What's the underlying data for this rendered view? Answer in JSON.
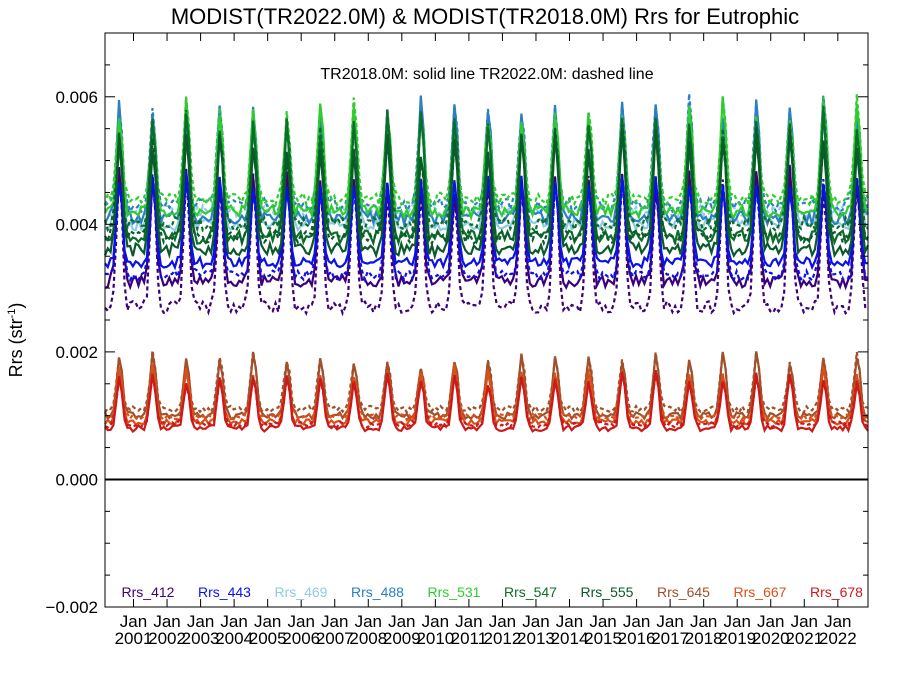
{
  "chart_data": {
    "type": "line",
    "title": "MODIST(TR2022.0M) & MODIST(TR2018.0M)  Rrs for Eutrophic",
    "annotation": "TR2018.0M: solid line   TR2022.0M: dashed line",
    "ylabel_base": "Rrs (str",
    "ylabel_sup": "-1",
    "ylabel_close": ")",
    "xlabel": "",
    "ylim": [
      -0.002,
      0.007
    ],
    "yticks": [
      {
        "value": -0.002,
        "label": "−0.002"
      },
      {
        "value": 0.0,
        "label": "0.000"
      },
      {
        "value": 0.002,
        "label": "0.002"
      },
      {
        "value": 0.004,
        "label": "0.004"
      },
      {
        "value": 0.006,
        "label": "0.006"
      }
    ],
    "xlim": [
      2000.15,
      2022.9
    ],
    "x_ticks": [
      {
        "value": 2001.0,
        "label": "Jan 2001"
      },
      {
        "value": 2002.0,
        "label": "Jan 2002"
      },
      {
        "value": 2003.0,
        "label": "Jan 2003"
      },
      {
        "value": 2004.0,
        "label": "Jan 2004"
      },
      {
        "value": 2005.0,
        "label": "Jan 2005"
      },
      {
        "value": 2006.0,
        "label": "Jan 2006"
      },
      {
        "value": 2007.0,
        "label": "Jan 2007"
      },
      {
        "value": 2008.0,
        "label": "Jan 2008"
      },
      {
        "value": 2009.0,
        "label": "Jan 2009"
      },
      {
        "value": 2010.0,
        "label": "Jan 2010"
      },
      {
        "value": 2011.0,
        "label": "Jan 2011"
      },
      {
        "value": 2012.0,
        "label": "Jan 2012"
      },
      {
        "value": 2013.0,
        "label": "Jan 2013"
      },
      {
        "value": 2014.0,
        "label": "Jan 2014"
      },
      {
        "value": 2015.0,
        "label": "Jan 2015"
      },
      {
        "value": 2016.0,
        "label": "Jan 2016"
      },
      {
        "value": 2017.0,
        "label": "Jan 2017"
      },
      {
        "value": 2018.0,
        "label": "Jan 2018"
      },
      {
        "value": 2019.0,
        "label": "Jan 2019"
      },
      {
        "value": 2020.0,
        "label": "Jan 2020"
      },
      {
        "value": 2021.0,
        "label": "Jan 2021"
      },
      {
        "value": 2022.0,
        "label": "Jan 2022"
      }
    ],
    "zero_line": 0.0,
    "series_model": {
      "description_units": "Rrs (sr^-1), monthly climatology-like seasonal cycle per series",
      "x_start": 2000.15,
      "x_end": 2022.9,
      "peak_phase": 0.58
    },
    "series": [
      {
        "name": "Rrs_412",
        "color": "#3b007a",
        "base": 0.0031,
        "amp": 0.0016,
        "dash_offset": -0.0002
      },
      {
        "name": "Rrs_443",
        "color": "#0a12e6",
        "base": 0.0034,
        "amp": 0.0013,
        "dash_offset": -0.0001
      },
      {
        "name": "Rrs_469",
        "color": "#8ecbe6",
        "base": 0.004,
        "amp": 0.0016,
        "dash_offset": 0.0001
      },
      {
        "name": "Rrs_488",
        "color": "#2b7fc2",
        "base": 0.0041,
        "amp": 0.0017,
        "dash_offset": 0.0001
      },
      {
        "name": "Rrs_531",
        "color": "#2fcc2f",
        "base": 0.0042,
        "amp": 0.0016,
        "dash_offset": 0.0001
      },
      {
        "name": "Rrs_547",
        "color": "#0b6e2a",
        "base": 0.0038,
        "amp": 0.0018,
        "dash_offset": 0.0001
      },
      {
        "name": "Rrs_555",
        "color": "#0a5a2a",
        "base": 0.0036,
        "amp": 0.0017,
        "dash_offset": 0.0001
      },
      {
        "name": "Rrs_645",
        "color": "#a0502a",
        "base": 0.001,
        "amp": 0.0009,
        "dash_offset": 5e-05
      },
      {
        "name": "Rrs_667",
        "color": "#d9501a",
        "base": 0.0009,
        "amp": 0.0008,
        "dash_offset": 4e-05
      },
      {
        "name": "Rrs_678",
        "color": "#cc1a1a",
        "base": 0.0008,
        "amp": 0.0008,
        "dash_offset": 3e-05
      }
    ],
    "legend_position": "bottom"
  }
}
